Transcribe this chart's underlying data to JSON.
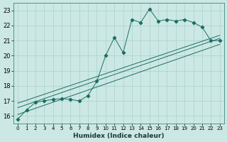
{
  "xlabel": "Humidex (Indice chaleur)",
  "bg_color": "#cce8e4",
  "grid_color": "#aad0cc",
  "line_color": "#1a6e64",
  "xlim": [
    -0.5,
    23.5
  ],
  "ylim": [
    15.5,
    23.5
  ],
  "yticks": [
    16,
    17,
    18,
    19,
    20,
    21,
    22,
    23
  ],
  "xticks": [
    0,
    1,
    2,
    3,
    4,
    5,
    6,
    7,
    8,
    9,
    10,
    11,
    12,
    13,
    14,
    15,
    16,
    17,
    18,
    19,
    20,
    21,
    22,
    23
  ],
  "main_x": [
    0,
    1,
    2,
    3,
    4,
    5,
    6,
    7,
    8,
    9,
    10,
    11,
    12,
    13,
    14,
    15,
    16,
    17,
    18,
    19,
    20,
    21,
    22,
    23
  ],
  "main_y": [
    15.8,
    16.4,
    16.9,
    17.0,
    17.1,
    17.15,
    17.1,
    17.0,
    17.35,
    18.3,
    20.0,
    21.2,
    20.2,
    22.4,
    22.2,
    23.1,
    22.3,
    22.4,
    22.3,
    22.4,
    22.2,
    21.9,
    21.0,
    21.0
  ],
  "line1_x": [
    0,
    23
  ],
  "line1_y": [
    16.55,
    21.15
  ],
  "line2_x": [
    0,
    23
  ],
  "line2_y": [
    16.85,
    21.35
  ],
  "line3_x": [
    0,
    23
  ],
  "line3_y": [
    16.1,
    20.75
  ]
}
